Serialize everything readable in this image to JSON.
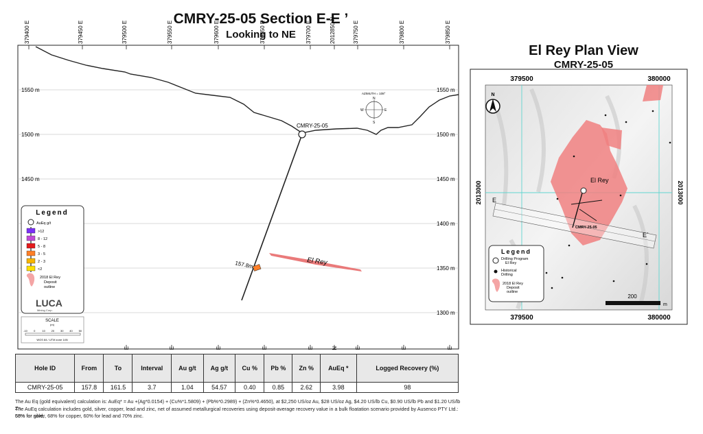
{
  "section": {
    "title": "CMRY-25-05 Section E-E ’",
    "subtitle": "Looking to NE",
    "top_ticks": [
      "379400 E",
      "379450 E",
      "379500 E",
      "379550 E",
      "379600 E",
      "379650 E",
      "379700 E",
      "2012850 N",
      "379750 E",
      "379800 E",
      "379850 E"
    ],
    "bottom_ticks": [
      "379500 E",
      "379550 E",
      "379600 E",
      "379650 E",
      "379700 E",
      "2012850 N",
      "379750 E",
      "379800 E",
      "379850 E"
    ],
    "elev_labels": [
      "1550 m",
      "1500 m",
      "1450 m",
      "1400 m",
      "1350 m",
      "1300 m"
    ],
    "collar_label": "CMRY-25-05",
    "depth_label": "157.8m",
    "deposit_label": "El Rey",
    "compass": {
      "azimuth": "AZIMUTH = 108°",
      "n": "N",
      "s": "S",
      "w": "W",
      "e": "E"
    },
    "legend": {
      "title": "Legend",
      "collar_item": "AuEq g/t",
      "grades": [
        {
          "label": ">12",
          "color": "#7b2ff7"
        },
        {
          "label": "8 - 12",
          "color": "#c04bd8"
        },
        {
          "label": "5 - 8",
          "color": "#e41a1c"
        },
        {
          "label": "3 - 5",
          "color": "#ff7f27"
        },
        {
          "label": "2 - 3",
          "color": "#f7b500"
        },
        {
          "label": "<2",
          "color": "#ffe000"
        }
      ],
      "deposit_item": "2018 El Rey\nDeposit\noutline",
      "logo_text": "LUCA",
      "logo_sub": "Mining Corp."
    },
    "scale": {
      "title": "SCALE",
      "unit": "(m)",
      "ticks": [
        "-10",
        "0",
        "10",
        "20",
        "30",
        "40",
        "50"
      ],
      "note": "WGS 84 / UTM zone 14N"
    }
  },
  "plan": {
    "title": "El Rey Plan View",
    "subtitle": "CMRY-25-05",
    "top_ticks": [
      "379500",
      "380000"
    ],
    "bottom_ticks": [
      "379500",
      "380000"
    ],
    "side_label": "2013000",
    "north": "N",
    "deposit_label": "El Rey",
    "hole_label": "CMRY-25-05",
    "e_left": "E",
    "e_right": "E´",
    "legend": {
      "title": "Legend",
      "items": [
        "Drilling Program\nEl Rey",
        "Historical\nDrilling",
        "2018 El Rey\nDeposit\noutline"
      ]
    },
    "scale_label": "200",
    "scale_unit": "m"
  },
  "table": {
    "headers": [
      "Hole ID",
      "From",
      "To",
      "Interval",
      "Au g/t",
      "Ag g/t",
      "Cu %",
      "Pb %",
      "Zn %",
      "AuEq *",
      "Logged Recovery (%)"
    ],
    "rows": [
      [
        "CMRY-25-05",
        "157.8",
        "161.5",
        "3.7",
        "1.04",
        "54.57",
        "0.40",
        "0.85",
        "2.62",
        "3.98",
        "98"
      ]
    ]
  },
  "footnotes": [
    "The Au Eq (gold equivalent) calculation is: AuEq* = Au +(Ag*0.0154) + (Cu%*1.5809) + (Pb%*0.2989) + (Zn%*0.4650), at $2,250 US/oz Au, $28 US/oz Ag, $4.20 US/lb Cu, $0.90 US/lb Pb and $1.20 US/lb Zn.",
    "The AuEq calculation includes gold, silver, copper, lead and zinc, net of assumed metallurgical recoveries using deposit-average recovery value in a bulk floatation scenario provided by Ausenco PTY Ltd.: 55% for gold,",
    "68% for silver, 68% for copper, 60% for lead and 70% zinc."
  ]
}
